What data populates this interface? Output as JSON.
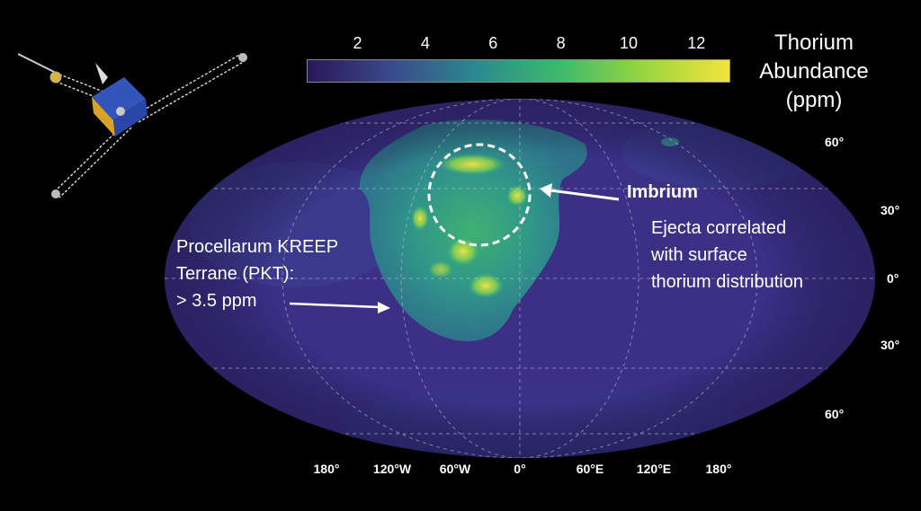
{
  "colorbar": {
    "title_lines": [
      "Thorium",
      "Abundance",
      "(ppm)"
    ],
    "tick_labels": [
      "2",
      "4",
      "6",
      "8",
      "10",
      "12"
    ],
    "tick_values": [
      2,
      4,
      6,
      8,
      10,
      12
    ],
    "range": [
      0.5,
      13
    ],
    "colormap": [
      "#2a1857",
      "#3b4a8c",
      "#2b8a8e",
      "#3dba6c",
      "#9ad63f",
      "#f5e33d"
    ]
  },
  "map": {
    "projection": "Mollweide",
    "longitude_labels": [
      "180°",
      "120°W",
      "60°W",
      "0°",
      "60°E",
      "120°E",
      "180°"
    ],
    "latitude_labels_north": [
      "60°",
      "30°"
    ],
    "latitude_labels_equator": "0°",
    "latitude_labels_south": [
      "30°",
      "60°"
    ],
    "background_color": "#3a2f85",
    "grid": true
  },
  "annotations": {
    "imbrium_label": "Imbrium",
    "imbrium_note_lines": [
      "Ejecta correlated",
      "with surface",
      "thorium distribution"
    ],
    "pkt_lines": [
      "Procellarum KREEP",
      "Terrane  (PKT):",
      "> 3.5 ppm"
    ]
  },
  "icons": {
    "spacecraft": "spacecraft-icon"
  }
}
